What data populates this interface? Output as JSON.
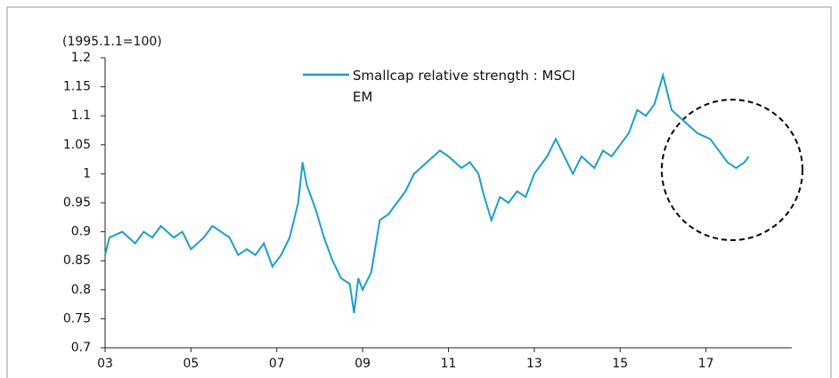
{
  "chart_data": {
    "type": "line",
    "annotation": "(1995.1.1=100)",
    "series": [
      {
        "name": "Smallcap relative strength : MSCI EM",
        "color": "#1a9fc8",
        "x": [
          3.0,
          3.1,
          3.4,
          3.7,
          3.9,
          4.1,
          4.3,
          4.6,
          4.8,
          5.0,
          5.3,
          5.5,
          5.7,
          5.9,
          6.1,
          6.3,
          6.5,
          6.7,
          6.9,
          7.1,
          7.3,
          7.5,
          7.6,
          7.7,
          7.9,
          8.1,
          8.3,
          8.5,
          8.7,
          8.8,
          8.9,
          9.0,
          9.2,
          9.4,
          9.6,
          9.8,
          10.0,
          10.2,
          10.5,
          10.8,
          11.0,
          11.3,
          11.5,
          11.7,
          11.8,
          12.0,
          12.2,
          12.4,
          12.6,
          12.8,
          13.0,
          13.3,
          13.5,
          13.7,
          13.9,
          14.1,
          14.4,
          14.6,
          14.8,
          15.0,
          15.2,
          15.4,
          15.6,
          15.8,
          16.0,
          16.2,
          16.5,
          16.8,
          17.1,
          17.3,
          17.5,
          17.7,
          17.9,
          18.0
        ],
        "values": [
          0.86,
          0.89,
          0.9,
          0.88,
          0.9,
          0.89,
          0.91,
          0.89,
          0.9,
          0.87,
          0.89,
          0.91,
          0.9,
          0.89,
          0.86,
          0.87,
          0.86,
          0.88,
          0.84,
          0.86,
          0.89,
          0.95,
          1.02,
          0.98,
          0.94,
          0.89,
          0.85,
          0.82,
          0.81,
          0.76,
          0.82,
          0.8,
          0.83,
          0.92,
          0.93,
          0.95,
          0.97,
          1.0,
          1.02,
          1.04,
          1.03,
          1.01,
          1.02,
          1.0,
          0.97,
          0.92,
          0.96,
          0.95,
          0.97,
          0.96,
          1.0,
          1.03,
          1.06,
          1.03,
          1.0,
          1.03,
          1.01,
          1.04,
          1.03,
          1.05,
          1.07,
          1.11,
          1.1,
          1.12,
          1.17,
          1.11,
          1.09,
          1.07,
          1.06,
          1.04,
          1.02,
          1.01,
          1.02,
          1.03
        ]
      }
    ],
    "xlim": [
      3,
      19
    ],
    "xticks": [
      {
        "value": 3,
        "label": "03"
      },
      {
        "value": 5,
        "label": "05"
      },
      {
        "value": 7,
        "label": "07"
      },
      {
        "value": 9,
        "label": "09"
      },
      {
        "value": 11,
        "label": "11"
      },
      {
        "value": 13,
        "label": "13"
      },
      {
        "value": 15,
        "label": "15"
      },
      {
        "value": 17,
        "label": "17"
      }
    ],
    "ylim": [
      0.7,
      1.2
    ],
    "yticks": [
      0.7,
      0.75,
      0.8,
      0.85,
      0.9,
      0.95,
      1,
      1.05,
      1.1,
      1.15,
      1.2
    ]
  }
}
